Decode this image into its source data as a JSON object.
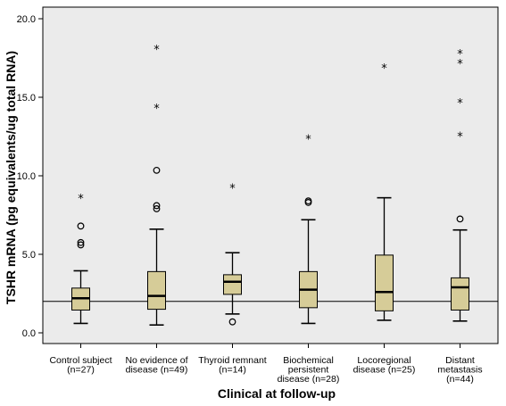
{
  "chart_data": {
    "type": "boxplot",
    "xlabel": "Clinical at follow-up",
    "ylabel": "TSHR mRNA (pg equivalents/ug total RNA)",
    "ylim": [
      0,
      20
    ],
    "yticks": [
      "0.0",
      "5.0",
      "10.0",
      "15.0",
      "20.0"
    ],
    "reference_line": 2.0,
    "grid": false,
    "colors": {
      "box_fill": "#d6cc98",
      "background": "#ebebeb",
      "line": "#000000"
    },
    "categories": [
      {
        "label_lines": [
          "Control subject",
          "(n=27)"
        ],
        "whisker_low": 0.6,
        "q1": 1.45,
        "median": 2.2,
        "q3": 2.85,
        "whisker_high": 3.95,
        "outliers": [
          5.6,
          5.75,
          6.8
        ],
        "extremes": [
          8.6
        ]
      },
      {
        "label_lines": [
          "No evidence of",
          "disease (n=49)"
        ],
        "whisker_low": 0.5,
        "q1": 1.5,
        "median": 2.35,
        "q3": 3.9,
        "whisker_high": 6.6,
        "outliers": [
          7.9,
          8.1,
          10.35
        ],
        "extremes": [
          14.35,
          18.1
        ]
      },
      {
        "label_lines": [
          "Thyroid remnant",
          "(n=14)"
        ],
        "whisker_low": 1.2,
        "q1": 2.45,
        "median": 3.25,
        "q3": 3.7,
        "whisker_high": 5.1,
        "outliers": [
          0.7
        ],
        "extremes": [
          9.25
        ]
      },
      {
        "label_lines": [
          "Biochemical",
          "persistent",
          "disease (n=28)"
        ],
        "whisker_low": 0.6,
        "q1": 1.6,
        "median": 2.75,
        "q3": 3.9,
        "whisker_high": 7.2,
        "outliers": [
          8.3,
          8.4
        ],
        "extremes": [
          12.4
        ]
      },
      {
        "label_lines": [
          "Locoregional",
          "disease (n=25)"
        ],
        "whisker_low": 0.8,
        "q1": 1.4,
        "median": 2.6,
        "q3": 4.95,
        "whisker_high": 8.6,
        "outliers": [],
        "extremes": [
          16.9
        ]
      },
      {
        "label_lines": [
          "Distant",
          "metastasis",
          "(n=44)"
        ],
        "whisker_low": 0.75,
        "q1": 1.45,
        "median": 2.9,
        "q3": 3.5,
        "whisker_high": 6.55,
        "outliers": [
          7.25
        ],
        "extremes": [
          12.55,
          14.7,
          17.2,
          17.8
        ]
      }
    ]
  }
}
